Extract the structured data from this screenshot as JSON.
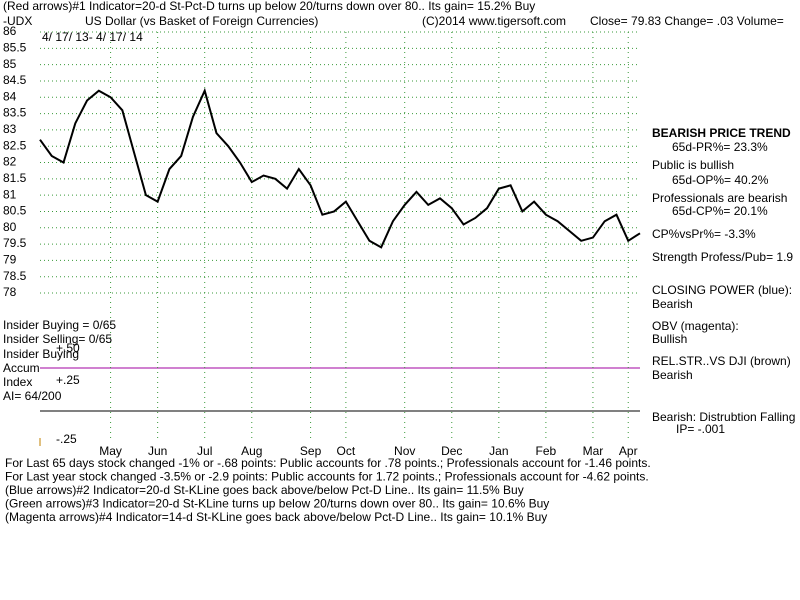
{
  "chart_data": {
    "type": "line",
    "title": "(Red arrows)#1 Indicator=20-d St-Pct-D turns up below 20/turns down over 80.. Its gain= 15.2% Buy",
    "symbol": "-UDX",
    "subtitle": "US Dollar (vs Basket of Foreign Currencies)",
    "copyright": "(C)2014 www.tigersoft.com",
    "quote": "Close=  79.83  Change= .03 Volume=",
    "date_range": "4/ 17/ 13-  4/ 17/ 14",
    "categories": [
      null,
      null,
      null,
      null,
      null,
      null,
      "May",
      null,
      null,
      null,
      "Jun",
      null,
      null,
      null,
      "Jul",
      null,
      null,
      null,
      "Aug",
      null,
      null,
      null,
      null,
      "Sep",
      null,
      null,
      "Oct",
      null,
      null,
      null,
      null,
      "Nov",
      null,
      null,
      null,
      "Dec",
      null,
      null,
      null,
      "Jan",
      null,
      null,
      null,
      "Feb",
      null,
      null,
      null,
      "Mar",
      null,
      null,
      "Apr",
      null
    ],
    "series": [
      {
        "name": "US Dollar",
        "color": "#000000",
        "values": [
          82.7,
          82.2,
          82.0,
          83.2,
          83.9,
          84.2,
          84.0,
          83.6,
          82.3,
          81.0,
          80.8,
          81.8,
          82.2,
          83.4,
          84.2,
          82.9,
          82.5,
          82.0,
          81.4,
          81.6,
          81.5,
          81.2,
          81.8,
          81.3,
          80.4,
          80.5,
          80.8,
          80.2,
          79.6,
          79.4,
          80.2,
          80.7,
          81.1,
          80.7,
          80.9,
          80.6,
          80.1,
          80.3,
          80.6,
          81.2,
          81.3,
          80.5,
          80.8,
          80.4,
          80.2,
          79.9,
          79.6,
          79.7,
          80.2,
          80.4,
          79.6,
          79.83
        ]
      }
    ],
    "ylim": [
      78,
      86
    ],
    "yticks": [
      78,
      78.5,
      79,
      79.5,
      80,
      80.5,
      81,
      81.5,
      82,
      82.5,
      83,
      83.5,
      84,
      84.5,
      85,
      85.5,
      86
    ],
    "grid": true,
    "lower_panel": {
      "labels": [
        "Insider Buying = 0/65",
        "Insider Selling= 0/65",
        "Insider Buying",
        "Accum",
        "Index",
        "AI= 64/200"
      ],
      "ticks": [
        "+.50",
        "+.25",
        "-.25"
      ]
    },
    "notes": [
      "BEARISH PRICE TREND",
      "65d-PR%= 23.3%",
      "Public is bullish",
      "65d-OP%= 40.2%",
      "Professionals are bearish",
      "65d-CP%= 20.1%",
      "CP%vsPr%= -3.3%",
      "Strength Profess/Pub= 1.9",
      "CLOSING POWER (blue):",
      "Bearish",
      "OBV (magenta):",
      "Bullish",
      "REL.STR..VS DJI (brown)",
      "Bearish",
      "Bearish: Distrubtion Falling",
      "IP= -.001"
    ],
    "footer": [
      "For Last 65 days stock changed -1% or -.68 points:  Public accounts for  .78 points.;  Professionals account for -1.46 points.",
      "For Last year stock changed -3.5% or -2.9 points:  Public accounts for  1.72 points.;  Professionals account for -4.62 points.",
      "(Blue arrows)#2 Indicator=20-d St-KLine goes back above/below Pct-D Line.. Its gain= 11.5% Buy",
      "(Green arrows)#3 Indicator=20-d St-KLine turns up below 20/turns down over 80.. Its gain= 10.6% Buy",
      "(Magenta arrows)#4 Indicator=14-d St-KLine goes back above/below Pct-D Line.. Its gain= 10.1% Buy"
    ]
  }
}
